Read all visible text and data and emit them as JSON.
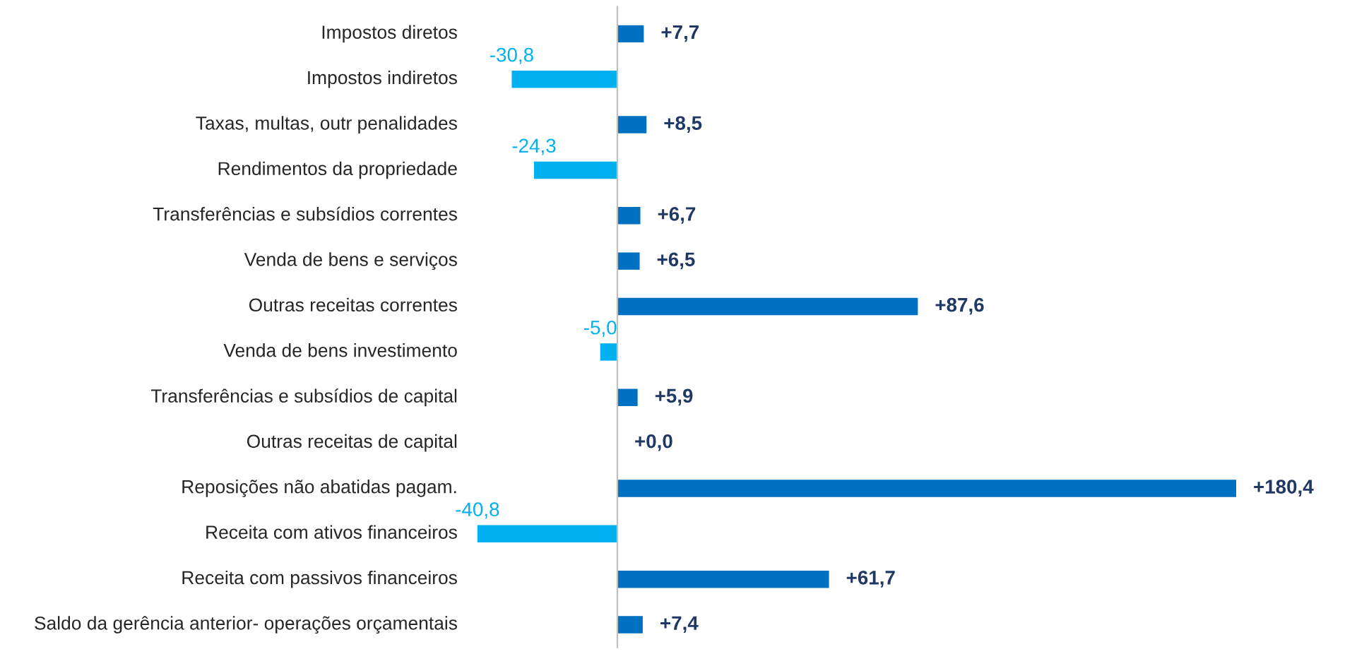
{
  "chart_data": {
    "type": "bar",
    "orientation": "horizontal",
    "categories": [
      "Impostos diretos",
      "Impostos indiretos",
      "Taxas, multas, outr penalidades",
      "Rendimentos da propriedade",
      "Transferências e subsídios correntes",
      "Venda de bens e serviços",
      "Outras receitas correntes",
      "Venda de bens investimento",
      "Transferências e subsídios de capital",
      "Outras receitas de capital",
      "Reposições não abatidas pagam.",
      "Receita com ativos financeiros",
      "Receita com passivos financeiros",
      "Saldo da gerência anterior- operações orçamentais"
    ],
    "values": [
      7.7,
      -30.8,
      8.5,
      -24.3,
      6.7,
      6.5,
      87.6,
      -5.0,
      5.9,
      0.0,
      180.4,
      -40.8,
      61.7,
      7.4
    ],
    "value_labels": [
      "+7,7",
      "-30,8",
      "+8,5",
      "-24,3",
      "+6,7",
      "+6,5",
      "+87,6",
      "-5,0",
      "+5,9",
      "+0,0",
      "+180,4",
      "-40,8",
      "+61,7",
      "+7,4"
    ],
    "colors": [
      "#0070c0",
      "#00b0f0",
      "#0070c0",
      "#00b0f0",
      "#0070c0",
      "#0070c0",
      "#0070c0",
      "#00b0f0",
      "#0070c0",
      "#0070c0",
      "#0070c0",
      "#00b0f0",
      "#0070c0",
      "#0070c0"
    ]
  }
}
